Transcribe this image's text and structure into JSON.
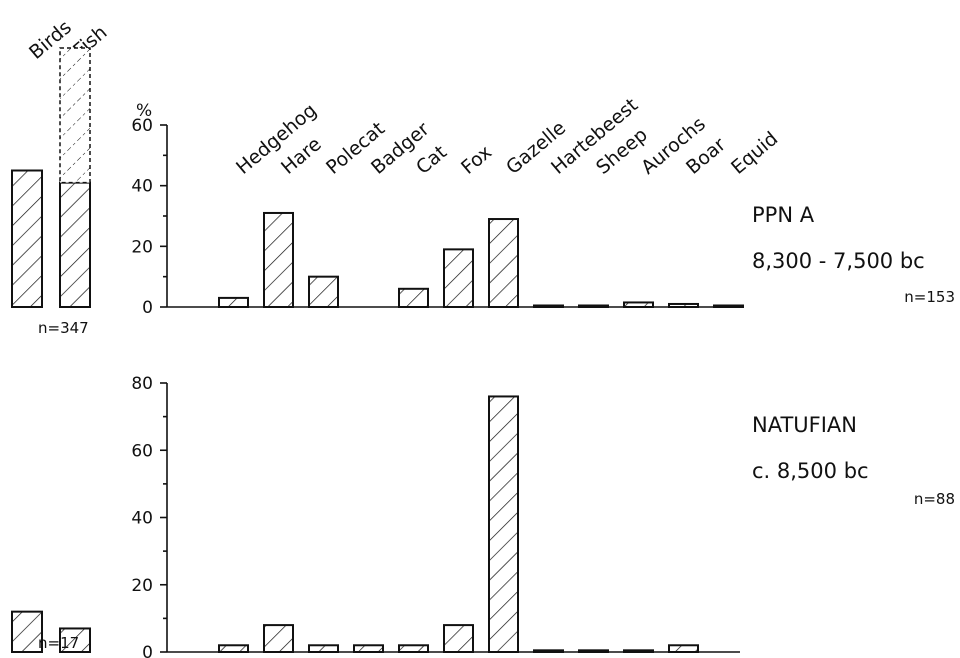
{
  "chart_data": {
    "type": "bar",
    "y_unit": "%",
    "categories": [
      "Hedgehog",
      "Hare",
      "Polecat",
      "Badger",
      "Cat",
      "Fox",
      "Gazelle",
      "Hartebeest",
      "Sheep",
      "Aurochs",
      "Boar",
      "Equid"
    ],
    "side_categories": [
      "Birds",
      "Fish"
    ],
    "panels": [
      {
        "name": "PPN A",
        "period": "8,300 - 7,500 bc",
        "n": "n=153",
        "ylim": [
          0,
          60
        ],
        "yticks": [
          "0",
          "20",
          "40",
          "60"
        ],
        "values": [
          3,
          31,
          10,
          0,
          6,
          19,
          29,
          0.5,
          0.5,
          1.5,
          1,
          0.5
        ],
        "side_values": [
          45,
          41
        ],
        "side_upper_estimate": [
          null,
          100
        ],
        "side_n": "n=347"
      },
      {
        "name": "NATUFIAN",
        "period": "c. 8,500 bc",
        "n": "n=88",
        "ylim": [
          0,
          80
        ],
        "yticks": [
          "0",
          "20",
          "40",
          "60",
          "80"
        ],
        "values": [
          2,
          8,
          2,
          2,
          2,
          8,
          76,
          0.5,
          0.5,
          0.5,
          2,
          0
        ],
        "side_values": [
          12,
          7
        ],
        "side_n": "n=17"
      }
    ]
  }
}
